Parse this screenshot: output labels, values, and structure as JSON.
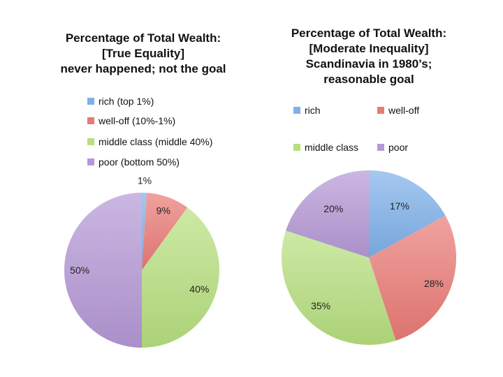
{
  "chart_data": [
    {
      "type": "pie",
      "title": [
        "Percentage of Total Wealth:",
        "[True Equality]",
        "never happened; not the goal"
      ],
      "categories": [
        "rich (top 1%)",
        "well-off (10%-1%)",
        "middle class (middle 40%)",
        "poor (bottom 50%)"
      ],
      "values": [
        1,
        9,
        40,
        50
      ],
      "data_labels": [
        "1%",
        "9%",
        "40%",
        "50%"
      ],
      "colors": [
        "#7eb1e9",
        "#ea7a76",
        "#b7df7f",
        "#b598d6"
      ],
      "legend": "top",
      "start_angle": "12 o'clock, clockwise"
    },
    {
      "type": "pie",
      "title": [
        "Percentage of Total Wealth:",
        "[Moderate Inequality]",
        "Scandinavia in 1980’s;",
        "reasonable goal"
      ],
      "categories": [
        "rich",
        "well-off",
        "middle class",
        "poor"
      ],
      "values": [
        17,
        28,
        35,
        20
      ],
      "data_labels": [
        "17%",
        "28%",
        "35%",
        "20%"
      ],
      "colors": [
        "#7eb1e9",
        "#ea7a76",
        "#b7df7f",
        "#b598d6"
      ],
      "legend": "top",
      "start_angle": "12 o'clock, clockwise"
    }
  ]
}
